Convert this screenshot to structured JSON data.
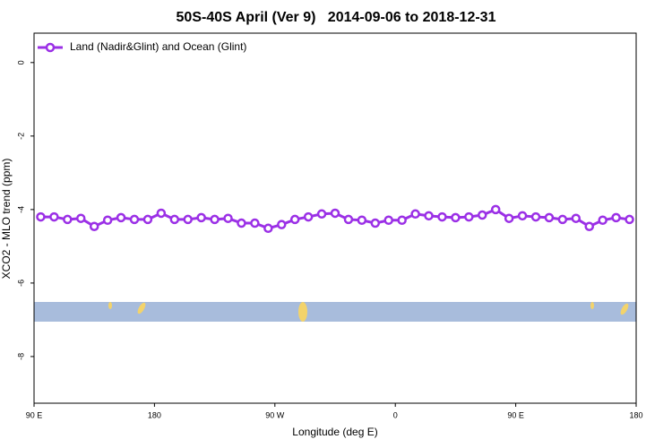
{
  "chart_data": {
    "type": "line",
    "title": "50S-40S April (Ver 9)   2014-09-06 to 2018-12-31",
    "x_label": "Longitude (deg E)",
    "y_label": "XCO2 - MLO trend (ppm)",
    "x": [
      95,
      105,
      115,
      125,
      135,
      145,
      155,
      165,
      175,
      185,
      195,
      205,
      215,
      225,
      235,
      245,
      255,
      265,
      275,
      285,
      295,
      305,
      315,
      325,
      335,
      345,
      355,
      365,
      375,
      385,
      395,
      405,
      415,
      425,
      435,
      445,
      455,
      465,
      475,
      485,
      495,
      505,
      515,
      525,
      535
    ],
    "series": [
      {
        "name": "Land (Nadir&Glint) and Ocean (Glint)",
        "color": "#9b30e6",
        "values": [
          -4.2,
          -4.2,
          -4.27,
          -4.24,
          -4.46,
          -4.29,
          -4.22,
          -4.27,
          -4.27,
          -4.1,
          -4.27,
          -4.27,
          -4.22,
          -4.27,
          -4.24,
          -4.37,
          -4.37,
          -4.51,
          -4.41,
          -4.27,
          -4.2,
          -4.12,
          -4.1,
          -4.27,
          -4.29,
          -4.37,
          -4.29,
          -4.29,
          -4.12,
          -4.17,
          -4.2,
          -4.22,
          -4.2,
          -4.15,
          -4.0,
          -4.24,
          -4.17,
          -4.2,
          -4.22,
          -4.27,
          -4.24,
          -4.46,
          -4.29,
          -4.22,
          -4.27
        ]
      }
    ],
    "xlim": [
      90,
      540
    ],
    "xticks": [
      {
        "value": 90,
        "label": "90 E"
      },
      180,
      {
        "value": 270,
        "label": "90 W"
      },
      {
        "value": 360,
        "label": "0"
      },
      {
        "value": 450,
        "label": "90 E"
      },
      {
        "value": 540,
        "label": "180"
      }
    ],
    "ylim": [
      -9.27,
      0.8
    ],
    "yticks": [
      0,
      -2,
      -4,
      -6,
      -8
    ],
    "legend": "top-left",
    "grid": false
  }
}
